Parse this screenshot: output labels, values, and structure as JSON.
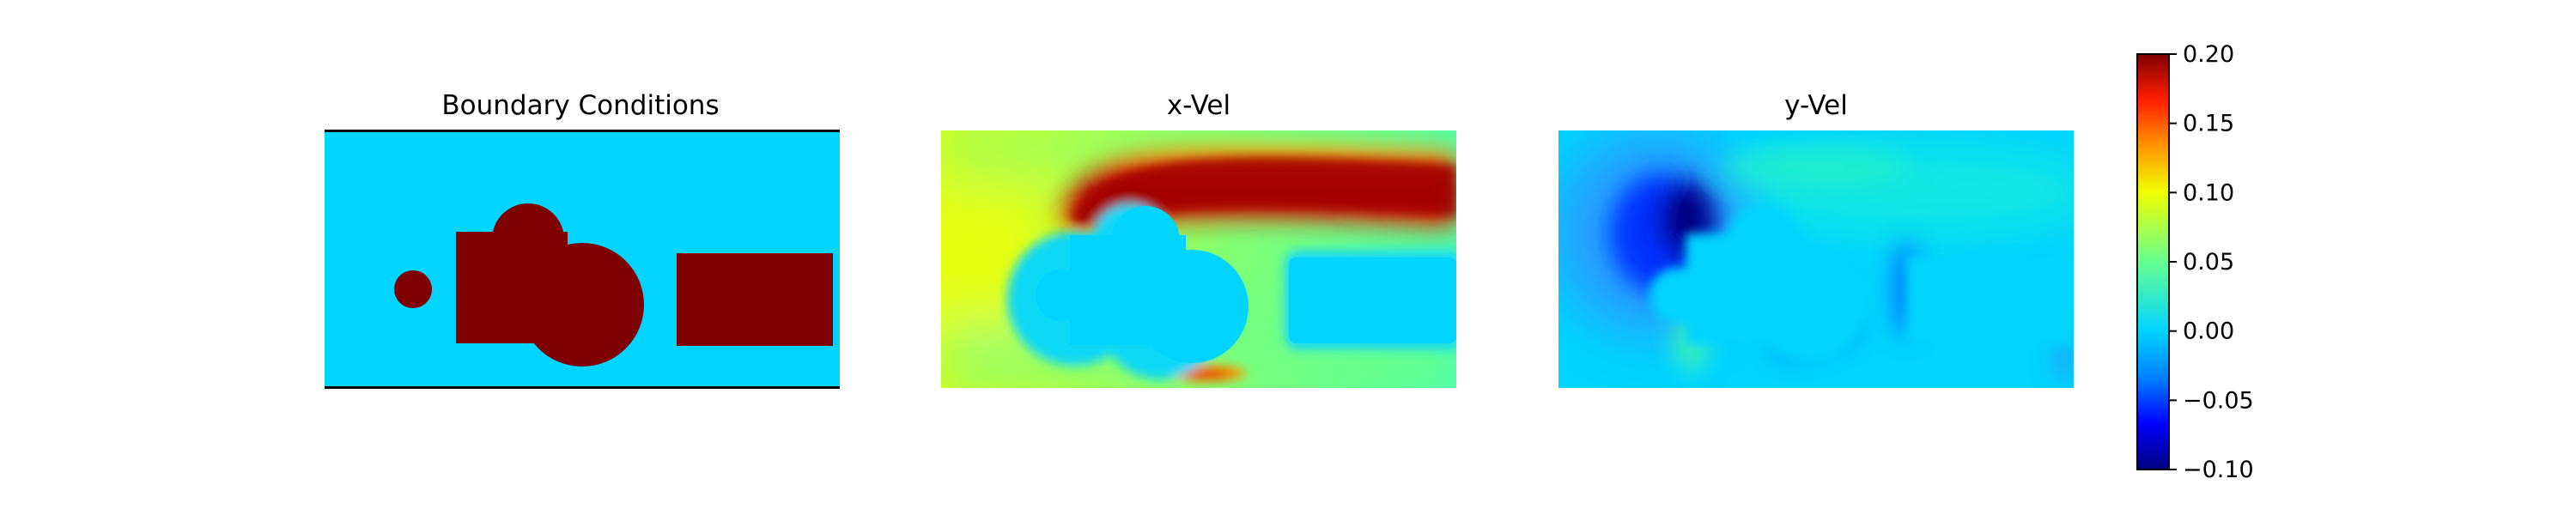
{
  "chart_data": {
    "type": "heatmap",
    "panels": [
      {
        "title": "Boundary Conditions",
        "field": "obstacle mask",
        "hline_borders": true
      },
      {
        "title": "x-Vel",
        "field": "x-velocity"
      },
      {
        "title": "y-Vel",
        "field": "y-velocity"
      }
    ],
    "colorbar": {
      "colormap": "jet",
      "vmin": -0.1,
      "vmax": 0.2,
      "ticks": [
        0.2,
        0.15,
        0.1,
        0.05,
        0.0,
        -0.05,
        -0.1
      ],
      "tick_labels": [
        "0.20",
        "0.15",
        "0.10",
        "0.05",
        "0.00",
        "−0.05",
        "−0.10"
      ]
    },
    "boundary_values": {
      "fluid": 0.0,
      "obstacle": 0.2
    },
    "grid": false,
    "axes": "off"
  }
}
